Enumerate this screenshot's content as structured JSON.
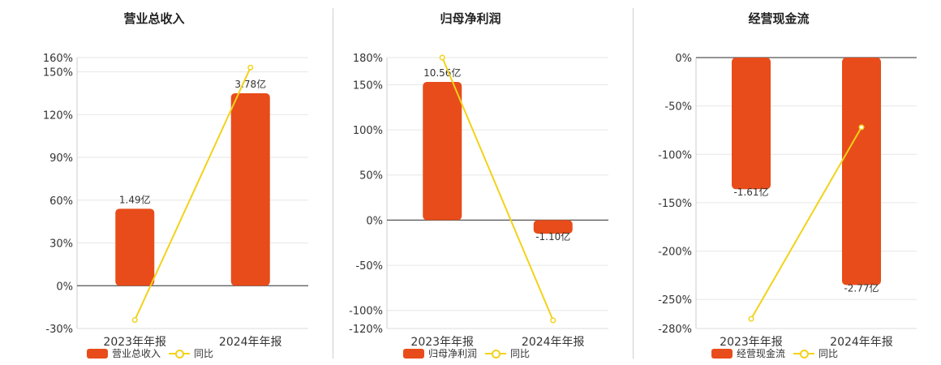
{
  "chart_data": [
    {
      "type": "bar",
      "title": "营业总收入",
      "categories": [
        "2023年年报",
        "2024年年报"
      ],
      "series": [
        {
          "name": "营业总收入",
          "type": "bar",
          "values": [
            1.49,
            3.78
          ],
          "labels": [
            "1.49亿",
            "3.78亿"
          ],
          "color": "#e84c1a",
          "axis_values_pct": [
            54,
            135
          ]
        },
        {
          "name": "同比",
          "type": "line",
          "values": [
            -24,
            153
          ],
          "color": "#f2d21a"
        }
      ],
      "yticks": [
        "160%",
        "150%",
        "120%",
        "90%",
        "60%",
        "30%",
        "0%",
        "-30%"
      ],
      "ylim": [
        -30,
        160
      ],
      "grid": true,
      "legend": "bottom"
    },
    {
      "type": "bar",
      "title": "归母净利润",
      "categories": [
        "2023年年报",
        "2024年年报"
      ],
      "series": [
        {
          "name": "归母净利润",
          "type": "bar",
          "values": [
            10.56,
            -1.1
          ],
          "labels": [
            "10.56亿",
            "-1.10亿"
          ],
          "color": "#e84c1a",
          "axis_values_pct": [
            153,
            -15
          ]
        },
        {
          "name": "同比",
          "type": "line",
          "values": [
            180,
            -111
          ],
          "color": "#f2d21a"
        }
      ],
      "yticks": [
        "180%",
        "150%",
        "100%",
        "50%",
        "0%",
        "-50%",
        "-100%",
        "-120%"
      ],
      "ylim": [
        -120,
        180
      ],
      "grid": true,
      "legend": "bottom"
    },
    {
      "type": "bar",
      "title": "经营现金流",
      "categories": [
        "2023年年报",
        "2024年年报"
      ],
      "series": [
        {
          "name": "经营现金流",
          "type": "bar",
          "values": [
            -1.61,
            -2.77
          ],
          "labels": [
            "-1.61亿",
            "-2.77亿"
          ],
          "color": "#e84c1a",
          "axis_values_pct": [
            -136,
            -235
          ]
        },
        {
          "name": "同比",
          "type": "line",
          "values": [
            -270,
            -72
          ],
          "color": "#f2d21a"
        }
      ],
      "yticks": [
        "0%",
        "-50%",
        "-100%",
        "-150%",
        "-200%",
        "-250%",
        "-280%"
      ],
      "ylim": [
        -280,
        0
      ],
      "grid": true,
      "legend": "bottom"
    }
  ]
}
